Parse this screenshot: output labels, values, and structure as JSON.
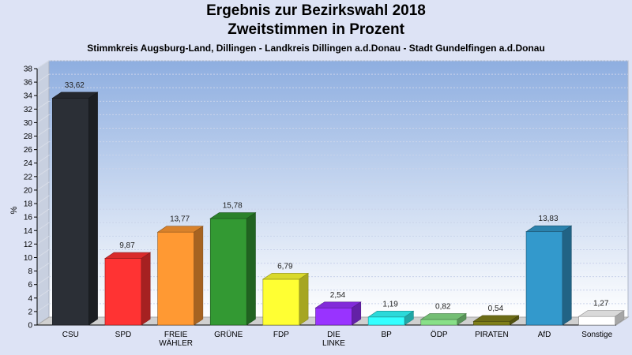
{
  "title": "Ergebnis zur Bezirkswahl 2018",
  "subtitle": "Zweitstimmen in Prozent",
  "subtitle2": "Stimmkreis Augsburg-Land, Dillingen - Landkreis Dillingen a.d.Donau - Stadt Gundelfingen a.d.Donau",
  "chart_data": {
    "type": "bar",
    "title": "Ergebnis zur Bezirkswahl 2018",
    "subtitle": "Zweitstimmen in Prozent",
    "ylabel": "%",
    "ylim": [
      0,
      38
    ],
    "yticks": [
      "0",
      "2",
      "4",
      "6",
      "8",
      "10",
      "12",
      "14",
      "16",
      "18",
      "20",
      "22",
      "24",
      "26",
      "28",
      "30",
      "32",
      "34",
      "36",
      "38"
    ],
    "grid": true,
    "categories": [
      [
        "CSU"
      ],
      [
        "SPD"
      ],
      [
        "FREIE",
        "WÄHLER"
      ],
      [
        "GRÜNE"
      ],
      [
        "FDP"
      ],
      [
        "DIE",
        "LINKE"
      ],
      [
        "BP"
      ],
      [
        "ÖDP"
      ],
      [
        "PIRATEN"
      ],
      [
        "AfD"
      ],
      [
        "Sonstige"
      ]
    ],
    "values": [
      33.62,
      9.87,
      13.77,
      15.78,
      6.79,
      2.54,
      1.19,
      0.82,
      0.54,
      13.83,
      1.27
    ],
    "value_labels": [
      "33,62",
      "9,87",
      "13,77",
      "15,78",
      "6,79",
      "2,54",
      "1,19",
      "0,82",
      "0,54",
      "13,83",
      "1,27"
    ],
    "colors": [
      "#2b2f36",
      "#ff3333",
      "#ff9933",
      "#339933",
      "#ffff33",
      "#9933ff",
      "#33ffff",
      "#88e088",
      "#7f7f1a",
      "#3399cc",
      "#ffffff"
    ]
  }
}
